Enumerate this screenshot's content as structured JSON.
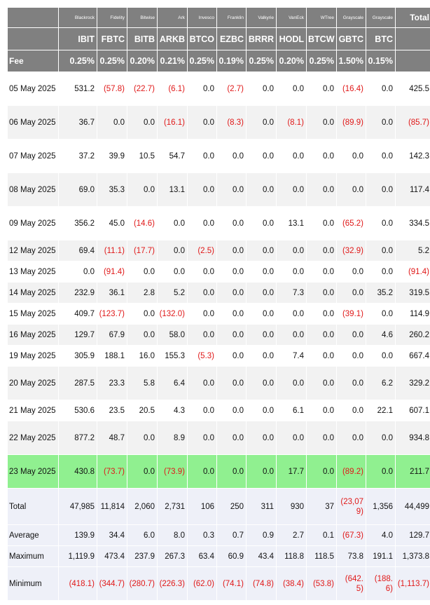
{
  "issuers": [
    "Blackrock",
    "Fidelity",
    "Bitwise",
    "Ark",
    "Invesco",
    "Franklin",
    "Valkyrie",
    "VanEck",
    "WTree",
    "Grayscale",
    "Grayscale"
  ],
  "tickers": [
    "IBIT",
    "FBTC",
    "BITB",
    "ARKB",
    "BTCO",
    "EZBC",
    "BRRR",
    "HODL",
    "BTCW",
    "GBTC",
    "BTC"
  ],
  "total_label": "Total",
  "fee_label": "Fee",
  "fees": [
    "0.25%",
    "0.25%",
    "0.20%",
    "0.21%",
    "0.25%",
    "0.19%",
    "0.25%",
    "0.20%",
    "0.25%",
    "1.50%",
    "0.15%"
  ],
  "rows": [
    {
      "date": "05 May 2025",
      "values": [
        "531.2",
        "(57.8)",
        "(22.7)",
        "(6.1)",
        "0.0",
        "(2.7)",
        "0.0",
        "0.0",
        "0.0",
        "(16.4)",
        "0.0"
      ],
      "total": "425.5"
    },
    {
      "date": "06 May 2025",
      "values": [
        "36.7",
        "0.0",
        "0.0",
        "(16.1)",
        "0.0",
        "(8.3)",
        "0.0",
        "(8.1)",
        "0.0",
        "(89.9)",
        "0.0"
      ],
      "total": "(85.7)"
    },
    {
      "date": "07 May 2025",
      "values": [
        "37.2",
        "39.9",
        "10.5",
        "54.7",
        "0.0",
        "0.0",
        "0.0",
        "0.0",
        "0.0",
        "0.0",
        "0.0"
      ],
      "total": "142.3"
    },
    {
      "date": "08 May 2025",
      "values": [
        "69.0",
        "35.3",
        "0.0",
        "13.1",
        "0.0",
        "0.0",
        "0.0",
        "0.0",
        "0.0",
        "0.0",
        "0.0"
      ],
      "total": "117.4"
    },
    {
      "date": "09 May 2025",
      "values": [
        "356.2",
        "45.0",
        "(14.6)",
        "0.0",
        "0.0",
        "0.0",
        "0.0",
        "13.1",
        "0.0",
        "(65.2)",
        "0.0"
      ],
      "total": "334.5"
    },
    {
      "date": "12 May 2025",
      "values": [
        "69.4",
        "(11.1)",
        "(17.7)",
        "0.0",
        "(2.5)",
        "0.0",
        "0.0",
        "0.0",
        "0.0",
        "(32.9)",
        "0.0"
      ],
      "total": "5.2"
    },
    {
      "date": "13 May 2025",
      "values": [
        "0.0",
        "(91.4)",
        "0.0",
        "0.0",
        "0.0",
        "0.0",
        "0.0",
        "0.0",
        "0.0",
        "0.0",
        "0.0"
      ],
      "total": "(91.4)"
    },
    {
      "date": "14 May 2025",
      "values": [
        "232.9",
        "36.1",
        "2.8",
        "5.2",
        "0.0",
        "0.0",
        "0.0",
        "7.3",
        "0.0",
        "0.0",
        "35.2"
      ],
      "total": "319.5"
    },
    {
      "date": "15 May 2025",
      "values": [
        "409.7",
        "(123.7)",
        "0.0",
        "(132.0)",
        "0.0",
        "0.0",
        "0.0",
        "0.0",
        "0.0",
        "(39.1)",
        "0.0"
      ],
      "total": "114.9"
    },
    {
      "date": "16 May 2025",
      "values": [
        "129.7",
        "67.9",
        "0.0",
        "58.0",
        "0.0",
        "0.0",
        "0.0",
        "0.0",
        "0.0",
        "0.0",
        "4.6"
      ],
      "total": "260.2"
    },
    {
      "date": "19 May 2025",
      "values": [
        "305.9",
        "188.1",
        "16.0",
        "155.3",
        "(5.3)",
        "0.0",
        "0.0",
        "7.4",
        "0.0",
        "0.0",
        "0.0"
      ],
      "total": "667.4"
    },
    {
      "date": "20 May 2025",
      "values": [
        "287.5",
        "23.3",
        "5.8",
        "6.4",
        "0.0",
        "0.0",
        "0.0",
        "0.0",
        "0.0",
        "0.0",
        "6.2"
      ],
      "total": "329.2"
    },
    {
      "date": "21 May 2025",
      "values": [
        "530.6",
        "23.5",
        "20.5",
        "4.3",
        "0.0",
        "0.0",
        "0.0",
        "6.1",
        "0.0",
        "0.0",
        "22.1"
      ],
      "total": "607.1"
    },
    {
      "date": "22 May 2025",
      "values": [
        "877.2",
        "48.7",
        "0.0",
        "8.9",
        "0.0",
        "0.0",
        "0.0",
        "0.0",
        "0.0",
        "0.0",
        "0.0"
      ],
      "total": "934.8"
    },
    {
      "date": "23 May 2025",
      "values": [
        "430.8",
        "(73.7)",
        "0.0",
        "(73.9)",
        "0.0",
        "0.0",
        "0.0",
        "17.7",
        "0.0",
        "(89.2)",
        "0.0"
      ],
      "total": "211.7"
    }
  ],
  "stats": [
    {
      "label": "Total",
      "values": [
        "47,985",
        "11,814",
        "2,060",
        "2,731",
        "106",
        "250",
        "311",
        "930",
        "37",
        "(23,079)",
        "1,356"
      ],
      "total": "44,499"
    },
    {
      "label": "Average",
      "values": [
        "139.9",
        "34.4",
        "6.0",
        "8.0",
        "0.3",
        "0.7",
        "0.9",
        "2.7",
        "0.1",
        "(67.3)",
        "4.0"
      ],
      "total": "129.7"
    },
    {
      "label": "Maximum",
      "values": [
        "1,119.9",
        "473.4",
        "237.9",
        "267.3",
        "63.4",
        "60.9",
        "43.4",
        "118.8",
        "118.5",
        "73.8",
        "191.1"
      ],
      "total": "1,373.8"
    },
    {
      "label": "Minimum",
      "values": [
        "(418.1)",
        "(344.7)",
        "(280.7)",
        "(226.3)",
        "(62.0)",
        "(74.1)",
        "(74.8)",
        "(38.4)",
        "(53.8)",
        "(642.5)",
        "(188.6)"
      ],
      "total": "(1,113.7)"
    }
  ],
  "colors": {
    "header_bg": "#808080",
    "highlight_row": "#90f090",
    "negative": "#e01818",
    "stats_bg": "#eef0f8",
    "alt_row": "#f2f2f2"
  }
}
